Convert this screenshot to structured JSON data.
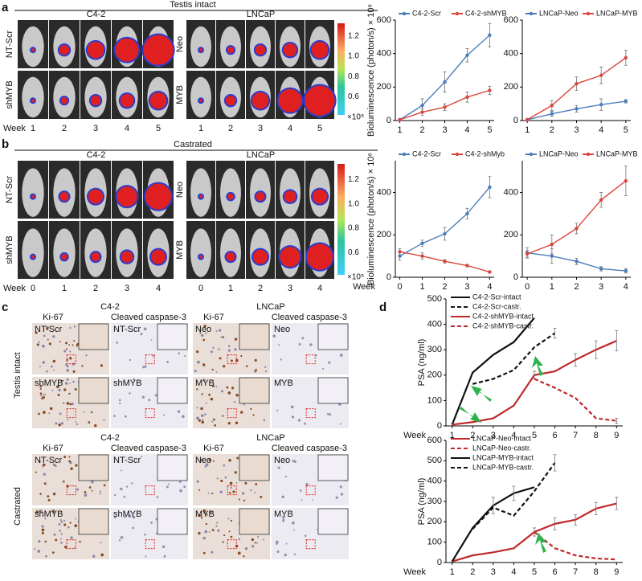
{
  "panel_labels": [
    "a",
    "b",
    "c",
    "d"
  ],
  "imaging": [
    {
      "section": "Testis intact",
      "groups": [
        {
          "title": "C4-2",
          "rows": [
            "NT-Scr",
            "shMYB"
          ]
        },
        {
          "title": "LNCaP",
          "rows": [
            "Neo",
            "MYB"
          ]
        }
      ],
      "week_label": "Week",
      "weeks": [
        "1",
        "2",
        "3",
        "4",
        "5"
      ]
    },
    {
      "section": "Castrated",
      "groups": [
        {
          "title": "C4-2",
          "rows": [
            "NT-Scr",
            "shMYB"
          ]
        },
        {
          "title": "LNCaP",
          "rows": [
            "Neo",
            "MYB"
          ]
        }
      ],
      "week_label": "Week",
      "weeks": [
        "0",
        "1",
        "2",
        "3",
        "4"
      ]
    }
  ],
  "colorbar": {
    "ticks": [
      "1.2",
      "1.0",
      "0.8",
      "0.6"
    ],
    "unit": "×10⁵"
  },
  "histology": [
    {
      "section": "Testis intact",
      "groups": [
        {
          "title": "C4-2",
          "columns": [
            "Ki-67",
            "Cleaved caspase-3"
          ],
          "rows": [
            "NT-Scr",
            "shMYB"
          ]
        },
        {
          "title": "LNCaP",
          "columns": [
            "Ki-67",
            "Cleaved caspase-3"
          ],
          "rows": [
            "Neo",
            "MYB"
          ]
        }
      ]
    },
    {
      "section": "Castrated",
      "groups": [
        {
          "title": "C4-2",
          "columns": [
            "Ki-67",
            "Cleaved caspase-3"
          ],
          "rows": [
            "NT-Scr",
            "shMYB"
          ]
        },
        {
          "title": "LNCaP",
          "columns": [
            "Ki-67",
            "Cleaved caspase-3"
          ],
          "rows": [
            "Neo",
            "MYB"
          ]
        }
      ]
    }
  ],
  "chart_data": [
    {
      "type": "line",
      "ylabel": "Bioluminescence (photon/s) × 10⁶",
      "x": [
        1,
        2,
        3,
        4,
        5
      ],
      "xlim": [
        0.8,
        5.2
      ],
      "xticks": [
        1,
        2,
        3,
        4,
        5
      ],
      "ylim": [
        0,
        600
      ],
      "yticks": [
        0,
        200,
        400,
        600
      ],
      "legend": "top",
      "markers": true,
      "series": [
        {
          "name": "C4-2-Scr",
          "color": "#4a7ebb",
          "values": [
            5,
            90,
            230,
            390,
            510
          ],
          "errors": [
            3,
            40,
            60,
            40,
            70
          ]
        },
        {
          "name": "C4-2-shMYB",
          "color": "#d9463e",
          "values": [
            5,
            50,
            80,
            140,
            180
          ],
          "errors": [
            3,
            20,
            20,
            30,
            25
          ]
        }
      ]
    },
    {
      "type": "line",
      "x": [
        1,
        2,
        3,
        4,
        5
      ],
      "xlim": [
        0.8,
        5.2
      ],
      "xticks": [
        1,
        2,
        3,
        4,
        5
      ],
      "ylim": [
        0,
        600
      ],
      "yticks": [
        0,
        200,
        400,
        600
      ],
      "legend": "top",
      "markers": true,
      "series": [
        {
          "name": "LNCaP-Neo",
          "color": "#4a7ebb",
          "values": [
            5,
            40,
            70,
            95,
            115
          ],
          "errors": [
            3,
            15,
            20,
            35,
            10
          ]
        },
        {
          "name": "LNCaP-MYB",
          "color": "#d9463e",
          "values": [
            5,
            90,
            220,
            270,
            375
          ],
          "errors": [
            3,
            30,
            40,
            50,
            45
          ]
        }
      ]
    },
    {
      "type": "line",
      "xlabel": "Week",
      "ylabel": "Bioluminescence (photon/s) × 10⁶",
      "x": [
        0,
        1,
        2,
        3,
        4
      ],
      "xlim": [
        -0.2,
        4.2
      ],
      "xticks": [
        0,
        1,
        2,
        3,
        4
      ],
      "ylim": [
        0,
        550
      ],
      "yticks": [
        0,
        200,
        400
      ],
      "legend": "top",
      "markers": true,
      "series": [
        {
          "name": "C4-2-Scr",
          "color": "#4a7ebb",
          "values": [
            100,
            160,
            205,
            300,
            425
          ],
          "errors": [
            20,
            15,
            30,
            25,
            50
          ]
        },
        {
          "name": "C4-2-shMyb",
          "color": "#d9463e",
          "values": [
            120,
            100,
            75,
            55,
            25
          ],
          "errors": [
            15,
            15,
            8,
            6,
            5
          ]
        }
      ]
    },
    {
      "type": "line",
      "x": [
        0,
        1,
        2,
        3,
        4
      ],
      "xlim": [
        -0.2,
        4.2
      ],
      "xticks": [
        0,
        1,
        2,
        3,
        4
      ],
      "ylim": [
        0,
        550
      ],
      "yticks": [
        0,
        200,
        400
      ],
      "legend": "top",
      "markers": true,
      "series": [
        {
          "name": "LNCaP-Neo",
          "color": "#4a7ebb",
          "values": [
            115,
            100,
            75,
            40,
            30
          ],
          "errors": [
            25,
            35,
            15,
            10,
            10
          ]
        },
        {
          "name": "LNCaP-MYB",
          "color": "#d9463e",
          "values": [
            110,
            155,
            230,
            365,
            455
          ],
          "errors": [
            15,
            45,
            25,
            35,
            70
          ]
        }
      ]
    },
    {
      "type": "line",
      "xlabel": "Week",
      "ylabel": "PSA (ng/ml)",
      "x": [
        1,
        2,
        3,
        4,
        5,
        6,
        7,
        8,
        9
      ],
      "xlim": [
        0.7,
        9.3
      ],
      "xticks": [
        1,
        2,
        3,
        4,
        5,
        6,
        7,
        8,
        9
      ],
      "ylim": [
        0,
        500
      ],
      "yticks": [
        0,
        100,
        200,
        300,
        400,
        500
      ],
      "legend": "upper left",
      "markers": false,
      "series": [
        {
          "name": "C4-2-Scr-intact",
          "color": "#111111",
          "dash": false,
          "values": [
            5,
            210,
            280,
            330,
            425,
            null,
            null,
            null,
            null
          ],
          "errors": [
            null,
            null,
            null,
            null,
            null,
            null,
            null,
            null,
            null
          ]
        },
        {
          "name": "C4-2-Scr-castr.",
          "color": "#111111",
          "dash": true,
          "values": [
            null,
            165,
            185,
            220,
            310,
            365,
            null,
            null,
            null
          ],
          "errors": [
            null,
            null,
            null,
            null,
            null,
            20,
            null,
            null,
            null
          ]
        },
        {
          "name": "C4-2-shMYB-intact",
          "color": "#c0282a",
          "dash": false,
          "values": [
            5,
            15,
            30,
            80,
            200,
            215,
            260,
            300,
            335
          ],
          "errors": [
            null,
            null,
            null,
            null,
            15,
            null,
            25,
            35,
            40
          ]
        },
        {
          "name": "C4-2-shMYB-castr.",
          "color": "#c0282a",
          "dash": true,
          "values": [
            null,
            null,
            null,
            null,
            185,
            150,
            110,
            30,
            20
          ],
          "errors": [
            null,
            null,
            null,
            null,
            null,
            null,
            null,
            null,
            10
          ]
        }
      ]
    },
    {
      "type": "line",
      "xlabel": "Week",
      "ylabel": "PSA (ng/ml)",
      "x": [
        1,
        2,
        3,
        4,
        5,
        6,
        7,
        8,
        9
      ],
      "xlim": [
        0.7,
        9.3
      ],
      "xticks": [
        1,
        2,
        3,
        4,
        5,
        6,
        7,
        8,
        9
      ],
      "ylim": [
        0,
        600
      ],
      "yticks": [
        0,
        100,
        200,
        300,
        400,
        500,
        600
      ],
      "legend": "upper left",
      "markers": false,
      "series": [
        {
          "name": "LNCaP-Neo-intact",
          "color": "#c0282a",
          "dash": false,
          "values": [
            5,
            35,
            50,
            70,
            150,
            190,
            210,
            265,
            290
          ],
          "errors": [
            null,
            null,
            null,
            null,
            20,
            30,
            25,
            30,
            30
          ]
        },
        {
          "name": "LNCaP-Neo-castr.",
          "color": "#c0282a",
          "dash": true,
          "values": [
            null,
            null,
            null,
            null,
            150,
            70,
            35,
            20,
            15
          ],
          "errors": [
            null,
            null,
            null,
            null,
            null,
            null,
            null,
            null,
            null
          ]
        },
        {
          "name": "LNCaP-MYB-intact",
          "color": "#111111",
          "dash": false,
          "values": [
            5,
            170,
            280,
            340,
            370,
            null,
            null,
            null,
            null
          ],
          "errors": [
            null,
            null,
            40,
            35,
            null,
            null,
            null,
            null,
            null
          ]
        },
        {
          "name": "LNCaP-MYB-castr.",
          "color": "#111111",
          "dash": true,
          "values": [
            null,
            165,
            270,
            230,
            350,
            490,
            null,
            null,
            null
          ],
          "errors": [
            null,
            null,
            null,
            null,
            null,
            40,
            null,
            null,
            null
          ]
        }
      ]
    }
  ]
}
